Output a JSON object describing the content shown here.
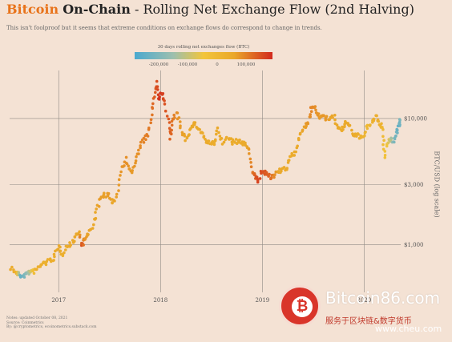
{
  "title": {
    "part1": "Bitcoin",
    "part2": "On-Chain",
    "part3": " - Rolling Net Exchange Flow (2nd Halving)"
  },
  "subtitle": "This isn't foolproof but it seems that extreme conditions on exchange flows do correspond to change in trends.",
  "legend": {
    "title": "30 days rolling net exchanges flow (BTC)",
    "ticks": [
      "-200,000",
      "-100,000",
      "0",
      "100,000"
    ],
    "tick_values": [
      -200000,
      -100000,
      0,
      100000
    ],
    "range": [
      -260000,
      140000
    ],
    "colors": [
      "#4aa9cf",
      "#9dbfae",
      "#f2c53b",
      "#eaa82a",
      "#d22a1d"
    ]
  },
  "notes": [
    "Notes: updated October 08, 2021",
    "Source: Coinmetrics",
    "By: @cryptometrics, ecoinometrics.substack.com"
  ],
  "watermark": {
    "name": "Bitcoin86.com",
    "subtitle": "服务于区块链&数字货币",
    "url": "www.cheu.com"
  },
  "chart_data": {
    "type": "scatter",
    "title": "Bitcoin On-Chain - Rolling Net Exchange Flow (2nd Halving)",
    "ylabel": "BTC/USD (log scale)",
    "y_scale": "log",
    "ylim": [
      420,
      24000
    ],
    "xlim": [
      "2016-07-09",
      "2020-05-11"
    ],
    "x_ticks": [
      {
        "date": "2017-01-01",
        "label": "2017"
      },
      {
        "date": "2018-01-01",
        "label": "2018"
      },
      {
        "date": "2019-01-01",
        "label": "2019"
      },
      {
        "date": "2020-01-01",
        "label": "2020"
      }
    ],
    "y_ticks": [
      {
        "value": 1000,
        "label": "$1,000"
      },
      {
        "value": 3000,
        "label": "$3,000"
      },
      {
        "value": 10000,
        "label": "$10,000"
      }
    ],
    "grid": true,
    "color_encoding": "30 days rolling net exchanges flow (BTC)",
    "points": [
      {
        "date": "2016-07-15",
        "price": 660,
        "flow": 30000
      },
      {
        "date": "2016-08-01",
        "price": 600,
        "flow": 10000
      },
      {
        "date": "2016-08-15",
        "price": 570,
        "flow": -230000
      },
      {
        "date": "2016-09-01",
        "price": 575,
        "flow": -200000
      },
      {
        "date": "2016-09-15",
        "price": 605,
        "flow": -150000
      },
      {
        "date": "2016-10-01",
        "price": 610,
        "flow": -40000
      },
      {
        "date": "2016-10-15",
        "price": 640,
        "flow": 20000
      },
      {
        "date": "2016-11-01",
        "price": 710,
        "flow": 15000
      },
      {
        "date": "2016-11-15",
        "price": 720,
        "flow": 10000
      },
      {
        "date": "2016-12-01",
        "price": 750,
        "flow": 20000
      },
      {
        "date": "2016-12-15",
        "price": 790,
        "flow": 20000
      },
      {
        "date": "2017-01-01",
        "price": 960,
        "flow": 40000
      },
      {
        "date": "2017-01-15",
        "price": 850,
        "flow": 10000
      },
      {
        "date": "2017-02-01",
        "price": 980,
        "flow": 30000
      },
      {
        "date": "2017-02-15",
        "price": 1010,
        "flow": 35000
      },
      {
        "date": "2017-03-01",
        "price": 1180,
        "flow": 40000
      },
      {
        "date": "2017-03-15",
        "price": 1250,
        "flow": 40000
      },
      {
        "date": "2017-03-25",
        "price": 970,
        "flow": 120000
      },
      {
        "date": "2017-04-01",
        "price": 1080,
        "flow": 60000
      },
      {
        "date": "2017-04-15",
        "price": 1190,
        "flow": 45000
      },
      {
        "date": "2017-05-01",
        "price": 1400,
        "flow": 40000
      },
      {
        "date": "2017-05-15",
        "price": 1750,
        "flow": 40000
      },
      {
        "date": "2017-06-01",
        "price": 2350,
        "flow": 50000
      },
      {
        "date": "2017-06-15",
        "price": 2500,
        "flow": 45000
      },
      {
        "date": "2017-07-01",
        "price": 2450,
        "flow": 50000
      },
      {
        "date": "2017-07-15",
        "price": 2050,
        "flow": 40000
      },
      {
        "date": "2017-08-01",
        "price": 2750,
        "flow": 50000
      },
      {
        "date": "2017-08-15",
        "price": 4200,
        "flow": 55000
      },
      {
        "date": "2017-09-01",
        "price": 4750,
        "flow": 60000
      },
      {
        "date": "2017-09-15",
        "price": 3700,
        "flow": 50000
      },
      {
        "date": "2017-10-01",
        "price": 4350,
        "flow": 55000
      },
      {
        "date": "2017-10-15",
        "price": 5700,
        "flow": 60000
      },
      {
        "date": "2017-11-01",
        "price": 6700,
        "flow": 70000
      },
      {
        "date": "2017-11-15",
        "price": 7300,
        "flow": 75000
      },
      {
        "date": "2017-12-01",
        "price": 10900,
        "flow": 80000
      },
      {
        "date": "2017-12-10",
        "price": 15000,
        "flow": 100000
      },
      {
        "date": "2017-12-17",
        "price": 19000,
        "flow": 110000
      },
      {
        "date": "2017-12-25",
        "price": 14000,
        "flow": 135000
      },
      {
        "date": "2018-01-05",
        "price": 16000,
        "flow": 130000
      },
      {
        "date": "2018-01-15",
        "price": 13500,
        "flow": 110000
      },
      {
        "date": "2018-02-01",
        "price": 9200,
        "flow": 100000
      },
      {
        "date": "2018-02-06",
        "price": 7000,
        "flow": 95000
      },
      {
        "date": "2018-02-15",
        "price": 9800,
        "flow": 80000
      },
      {
        "date": "2018-03-01",
        "price": 10900,
        "flow": 60000
      },
      {
        "date": "2018-03-15",
        "price": 8200,
        "flow": 50000
      },
      {
        "date": "2018-04-01",
        "price": 6900,
        "flow": 40000
      },
      {
        "date": "2018-04-15",
        "price": 8000,
        "flow": 35000
      },
      {
        "date": "2018-05-01",
        "price": 9200,
        "flow": 40000
      },
      {
        "date": "2018-05-15",
        "price": 8500,
        "flow": 35000
      },
      {
        "date": "2018-06-01",
        "price": 7500,
        "flow": 30000
      },
      {
        "date": "2018-06-15",
        "price": 6500,
        "flow": 30000
      },
      {
        "date": "2018-07-01",
        "price": 6350,
        "flow": 25000
      },
      {
        "date": "2018-07-15",
        "price": 6300,
        "flow": 25000
      },
      {
        "date": "2018-07-25",
        "price": 8200,
        "flow": 35000
      },
      {
        "date": "2018-08-10",
        "price": 6400,
        "flow": 30000
      },
      {
        "date": "2018-09-01",
        "price": 7100,
        "flow": 30000
      },
      {
        "date": "2018-09-15",
        "price": 6500,
        "flow": 25000
      },
      {
        "date": "2018-10-01",
        "price": 6600,
        "flow": 25000
      },
      {
        "date": "2018-10-15",
        "price": 6450,
        "flow": 30000
      },
      {
        "date": "2018-11-01",
        "price": 6350,
        "flow": 30000
      },
      {
        "date": "2018-11-15",
        "price": 5600,
        "flow": 50000
      },
      {
        "date": "2018-11-25",
        "price": 3900,
        "flow": 80000
      },
      {
        "date": "2018-12-10",
        "price": 3450,
        "flow": 100000
      },
      {
        "date": "2018-12-15",
        "price": 3200,
        "flow": 120000
      },
      {
        "date": "2019-01-01",
        "price": 3800,
        "flow": 110000
      },
      {
        "date": "2019-01-15",
        "price": 3600,
        "flow": 100000
      },
      {
        "date": "2019-02-01",
        "price": 3450,
        "flow": 90000
      },
      {
        "date": "2019-02-15",
        "price": 3600,
        "flow": 60000
      },
      {
        "date": "2019-03-01",
        "price": 3800,
        "flow": 40000
      },
      {
        "date": "2019-03-15",
        "price": 3900,
        "flow": 35000
      },
      {
        "date": "2019-04-01",
        "price": 4100,
        "flow": 30000
      },
      {
        "date": "2019-04-15",
        "price": 5100,
        "flow": 25000
      },
      {
        "date": "2019-05-01",
        "price": 5400,
        "flow": 30000
      },
      {
        "date": "2019-05-15",
        "price": 7800,
        "flow": 40000
      },
      {
        "date": "2019-06-01",
        "price": 8500,
        "flow": 45000
      },
      {
        "date": "2019-06-15",
        "price": 9300,
        "flow": 55000
      },
      {
        "date": "2019-06-26",
        "price": 12500,
        "flow": 70000
      },
      {
        "date": "2019-07-10",
        "price": 11900,
        "flow": 60000
      },
      {
        "date": "2019-07-20",
        "price": 10500,
        "flow": 55000
      },
      {
        "date": "2019-08-01",
        "price": 10400,
        "flow": 50000
      },
      {
        "date": "2019-08-15",
        "price": 10200,
        "flow": 55000
      },
      {
        "date": "2019-09-01",
        "price": 9800,
        "flow": 45000
      },
      {
        "date": "2019-09-15",
        "price": 10300,
        "flow": 40000
      },
      {
        "date": "2019-10-01",
        "price": 8300,
        "flow": 35000
      },
      {
        "date": "2019-10-15",
        "price": 8200,
        "flow": 30000
      },
      {
        "date": "2019-10-26",
        "price": 9500,
        "flow": 35000
      },
      {
        "date": "2019-11-10",
        "price": 8800,
        "flow": 40000
      },
      {
        "date": "2019-11-25",
        "price": 7200,
        "flow": 30000
      },
      {
        "date": "2019-12-10",
        "price": 7300,
        "flow": 20000
      },
      {
        "date": "2019-12-20",
        "price": 7200,
        "flow": 10000
      },
      {
        "date": "2020-01-01",
        "price": 7200,
        "flow": 0
      },
      {
        "date": "2020-01-15",
        "price": 8800,
        "flow": -20000
      },
      {
        "date": "2020-02-01",
        "price": 9400,
        "flow": 10000
      },
      {
        "date": "2020-02-12",
        "price": 10300,
        "flow": 20000
      },
      {
        "date": "2020-02-25",
        "price": 9300,
        "flow": 15000
      },
      {
        "date": "2020-03-08",
        "price": 8000,
        "flow": -20000
      },
      {
        "date": "2020-03-13",
        "price": 5000,
        "flow": -40000
      },
      {
        "date": "2020-03-25",
        "price": 6500,
        "flow": -60000
      },
      {
        "date": "2020-04-05",
        "price": 6800,
        "flow": -120000
      },
      {
        "date": "2020-04-15",
        "price": 6700,
        "flow": -200000
      },
      {
        "date": "2020-04-25",
        "price": 7600,
        "flow": -210000
      },
      {
        "date": "2020-05-05",
        "price": 8900,
        "flow": -230000
      },
      {
        "date": "2020-05-10",
        "price": 9600,
        "flow": -200000
      }
    ]
  }
}
